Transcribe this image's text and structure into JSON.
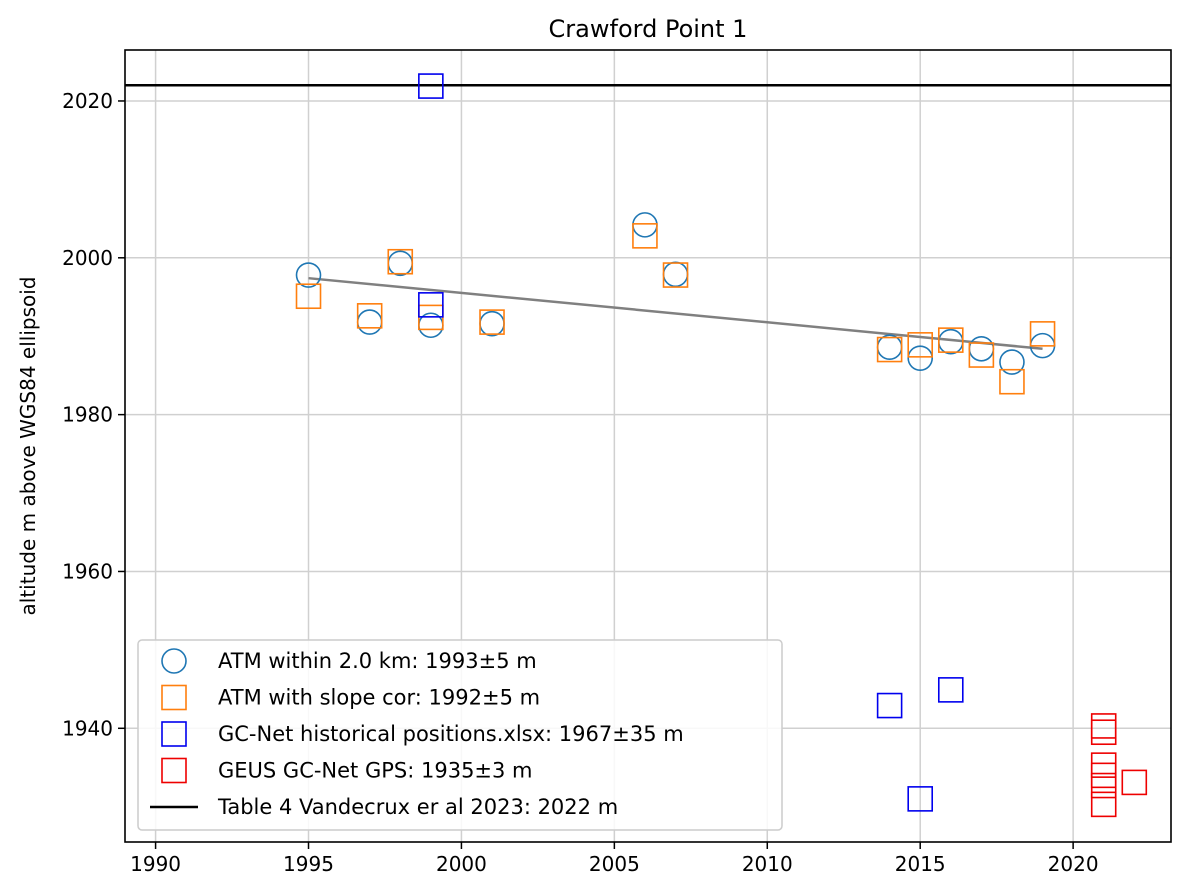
{
  "chart_data": {
    "type": "scatter",
    "title": "Crawford Point 1",
    "xlabel": "",
    "ylabel": "altitude m above WGS84 ellipsoid",
    "xlim": [
      1989,
      2023.2
    ],
    "ylim": [
      1925.5,
      2026.5
    ],
    "xticks": [
      1990,
      1995,
      2000,
      2005,
      2010,
      2015,
      2020
    ],
    "yticks": [
      1940,
      1960,
      1980,
      2000,
      2020
    ],
    "grid": true,
    "legend_position": "lower-left",
    "series": [
      {
        "name": "ATM within 2.0 km: 1993±5 m",
        "marker": "circle",
        "color": "#1f77b4",
        "points": [
          [
            1995,
            1997.8
          ],
          [
            1997,
            1991.8
          ],
          [
            1998,
            1999.3
          ],
          [
            1999,
            1991.4
          ],
          [
            2001,
            1991.6
          ],
          [
            2006,
            2004.2
          ],
          [
            2007,
            1997.9
          ],
          [
            2014,
            1988.6
          ],
          [
            2015,
            1987.2
          ],
          [
            2016,
            1989.3
          ],
          [
            2017,
            1988.4
          ],
          [
            2018,
            1986.7
          ],
          [
            2019,
            1988.8
          ]
        ]
      },
      {
        "name": "ATM with slope cor: 1992±5 m",
        "marker": "square",
        "color": "#ff7f0e",
        "points": [
          [
            1995,
            1995.1
          ],
          [
            1997,
            1992.6
          ],
          [
            1998,
            1999.5
          ],
          [
            1999,
            1992.4
          ],
          [
            2001,
            1991.8
          ],
          [
            2006,
            2002.8
          ],
          [
            2007,
            1997.8
          ],
          [
            2014,
            1988.3
          ],
          [
            2015,
            1988.9
          ],
          [
            2016,
            1989.5
          ],
          [
            2017,
            1987.6
          ],
          [
            2018,
            1984.2
          ],
          [
            2019,
            1990.3
          ]
        ]
      },
      {
        "name": "GC-Net historical positions.xlsx: 1967±35 m",
        "marker": "square",
        "color": "#0000ee",
        "points": [
          [
            1999,
            2021.9
          ],
          [
            1999,
            1994.0
          ],
          [
            2014,
            1942.9
          ],
          [
            2015,
            1931.0
          ],
          [
            2016,
            1944.9
          ]
        ]
      },
      {
        "name": "GEUS GC-Net GPS: 1935±3 m",
        "marker": "square",
        "color": "#ee0000",
        "points": [
          [
            2021,
            1940.3
          ],
          [
            2021,
            1939.5
          ],
          [
            2021,
            1935.3
          ],
          [
            2021,
            1934.0
          ],
          [
            2021,
            1932.7
          ],
          [
            2021,
            1930.3
          ],
          [
            2022,
            1933.1
          ]
        ]
      }
    ],
    "reference_line": {
      "name": "Table 4 Vandecrux er al 2023: 2022 m",
      "y": 2022,
      "color": "#000000"
    },
    "trend_line": {
      "color": "#808080",
      "points": [
        [
          1995,
          1997.4
        ],
        [
          2019,
          1988.4
        ]
      ]
    }
  }
}
